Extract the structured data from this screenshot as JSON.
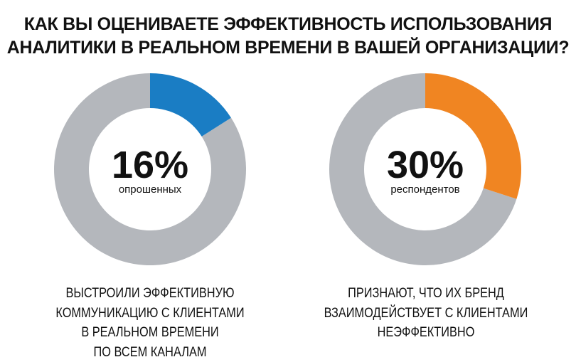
{
  "title": {
    "line1": "КАК ВЫ ОЦЕНИВАЕТЕ ЭФФЕКТИВНОСТЬ ИСПОЛЬЗОВАНИЯ",
    "line2": "АНАЛИТИКИ В РЕАЛЬНОМ ВРЕМЕНИ В ВАШЕЙ ОРГАНИЗАЦИИ?"
  },
  "chart_data": [
    {
      "type": "pie",
      "variant": "donut",
      "value": 16,
      "remainder": 84,
      "center_label": "16%",
      "center_sublabel": "опрошенных",
      "caption": [
        "ВЫСТРОИЛИ ЭФФЕКТИВНУЮ",
        "КОММУНИКАЦИЮ С КЛИЕНТАМИ",
        "В РЕАЛЬНОМ ВРЕМЕНИ",
        "ПО ВСЕМ КАНАЛАМ"
      ],
      "color": "#1a7dc4",
      "rest_color": "#b4b7bc"
    },
    {
      "type": "pie",
      "variant": "donut",
      "value": 30,
      "remainder": 70,
      "center_label": "30%",
      "center_sublabel": "респондентов",
      "caption": [
        "ПРИЗНАЮТ, ЧТО ИХ БРЕНД",
        "ВЗАИМОДЕЙСТВУЕТ С КЛИЕНТАМИ",
        "НЕЭФФЕКТИВНО"
      ],
      "color": "#f08522",
      "rest_color": "#b4b7bc"
    }
  ]
}
